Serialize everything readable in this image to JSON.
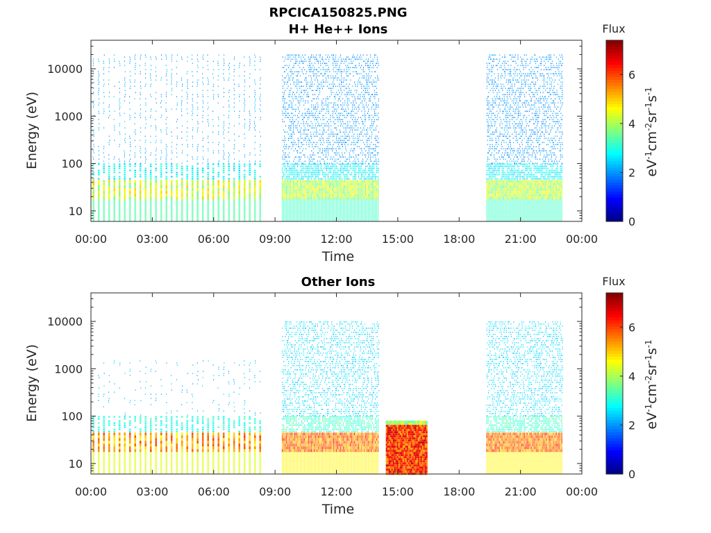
{
  "title": "RPCICA150825.PNG",
  "chart_data": [
    {
      "type": "heatmap",
      "title": "H+ He++ Ions",
      "xlabel": "Time",
      "ylabel": "Energy (eV)",
      "x_ticks": [
        "00:00",
        "03:00",
        "06:00",
        "09:00",
        "12:00",
        "15:00",
        "18:00",
        "21:00",
        "00:00"
      ],
      "y_scale": "log",
      "y_ticks": [
        "10",
        "100",
        "1000",
        "10000"
      ],
      "ylim": [
        6,
        40000
      ],
      "colorbar": {
        "title": "Flux",
        "unit": "eV-1cm-2sr-1s-1",
        "ticks": [
          "0",
          "2",
          "4",
          "6"
        ],
        "range": [
          0,
          7.4
        ],
        "colormap": "jet"
      },
      "data_intervals": [
        {
          "start": "00:05",
          "end": "08:15",
          "style": "striped",
          "band_low_ev": 18,
          "band_high_ev": 45,
          "band_flux": 5.0,
          "high_energy_flux": 1.8,
          "max_energy_ev": 20000
        },
        {
          "start": "09:20",
          "end": "14:05",
          "style": "dense",
          "band_low_ev": 18,
          "band_high_ev": 45,
          "band_flux": 4.8,
          "high_energy_flux": 1.7,
          "max_energy_ev": 20000
        },
        {
          "start": "19:20",
          "end": "23:00",
          "style": "dense",
          "band_low_ev": 18,
          "band_high_ev": 45,
          "band_flux": 4.8,
          "high_energy_flux": 1.7,
          "max_energy_ev": 20000
        }
      ]
    },
    {
      "type": "heatmap",
      "title": "Other Ions",
      "xlabel": "Time",
      "ylabel": "Energy (eV)",
      "x_ticks": [
        "00:00",
        "03:00",
        "06:00",
        "09:00",
        "12:00",
        "15:00",
        "18:00",
        "21:00",
        "00:00"
      ],
      "y_scale": "log",
      "y_ticks": [
        "10",
        "100",
        "1000",
        "10000"
      ],
      "ylim": [
        6,
        40000
      ],
      "colorbar": {
        "title": "Flux",
        "unit": "eV-1cm-2sr-1s-1",
        "ticks": [
          "0",
          "2",
          "4",
          "6"
        ],
        "range": [
          0,
          7.4
        ],
        "colormap": "jet"
      },
      "data_intervals": [
        {
          "start": "00:05",
          "end": "08:15",
          "style": "striped",
          "band_low_ev": 18,
          "band_high_ev": 45,
          "band_flux": 6.0,
          "high_energy_flux": 2.0,
          "max_energy_ev": 1500
        },
        {
          "start": "09:20",
          "end": "14:05",
          "style": "dense",
          "band_low_ev": 18,
          "band_high_ev": 45,
          "band_flux": 6.3,
          "high_energy_flux": 2.2,
          "max_energy_ev": 10000
        },
        {
          "start": "14:25",
          "end": "16:25",
          "style": "solid",
          "band_low_ev": 6,
          "band_high_ev": 80,
          "band_flux": 7.0,
          "high_energy_flux": 0,
          "max_energy_ev": 80
        },
        {
          "start": "19:20",
          "end": "23:00",
          "style": "dense",
          "band_low_ev": 18,
          "band_high_ev": 45,
          "band_flux": 6.3,
          "high_energy_flux": 2.2,
          "max_energy_ev": 10000
        }
      ]
    }
  ]
}
